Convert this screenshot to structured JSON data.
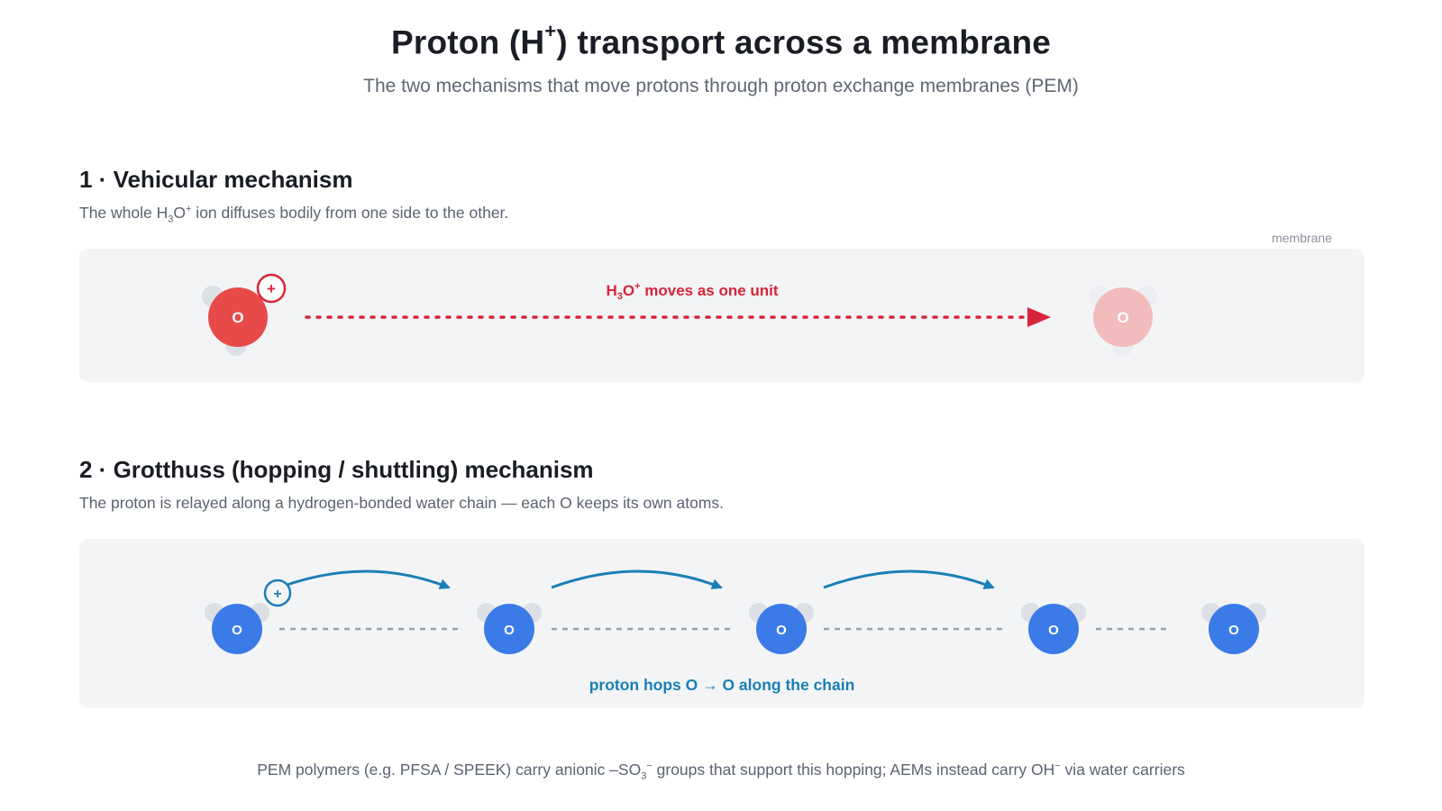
{
  "header": {
    "title_pre": "Proton (H",
    "title_sup": "+",
    "title_post": ") transport across a membrane",
    "subtitle": "The two mechanisms that move protons through proton exchange membranes (PEM)"
  },
  "membrane_label": "membrane",
  "section1": {
    "title": "1 · Vehicular mechanism",
    "desc_pre": "The whole H",
    "desc_sub": "3",
    "desc_mid": "O",
    "desc_sup": "+",
    "desc_post": " ion diffuses bodily from one side to the other.",
    "arrow_label_pre": "H",
    "arrow_label_sub": "3",
    "arrow_label_mid": "O",
    "arrow_label_sup": "+",
    "arrow_label_post": " moves as one unit",
    "atom_label": "O",
    "plus_label": "+",
    "colors": {
      "oxygen": "#e84a4a",
      "ghost": "#f2b9b9",
      "arrow": "#d8243a",
      "hydrogen": "#dcdfe4"
    }
  },
  "section2": {
    "title": "2 · Grotthuss (hopping / shuttling) mechanism",
    "desc": "The proton is relayed along a hydrogen-bonded water chain — each O keeps its own atoms.",
    "caption": "proton hops O → O along the chain",
    "atom_label": "O",
    "plus_label": "+",
    "colors": {
      "oxygen": "#3b7be8",
      "arrow": "#1a7fb5",
      "hbond": "#9aa1ab",
      "hydrogen": "#dcdfe4"
    }
  },
  "footer": {
    "pre": "PEM polymers (e.g. PFSA / SPEEK) carry anionic –SO",
    "sub": "3",
    "sup": "−",
    "mid": " groups that support this hopping; AEMs instead carry OH",
    "sup2": "−",
    "post": " via water carriers"
  }
}
